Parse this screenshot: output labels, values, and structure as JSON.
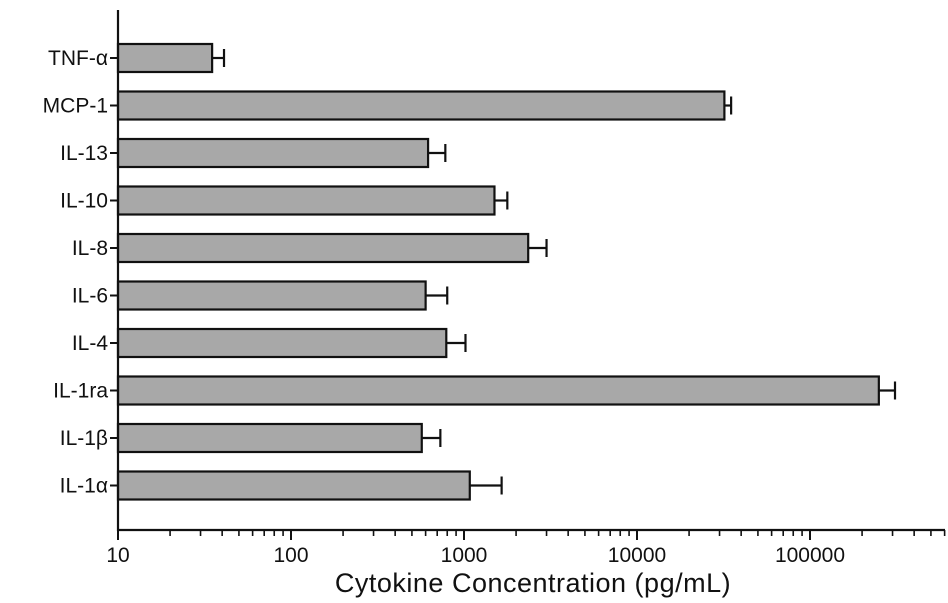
{
  "chart_data": {
    "type": "bar",
    "orientation": "horizontal",
    "title": "",
    "xlabel": "Cytokine Concentration (pg/mL)",
    "ylabel": "",
    "xscale": "log",
    "xlim": [
      10,
      500000
    ],
    "x_ticks": [
      10,
      100,
      1000,
      10000,
      100000
    ],
    "x_tick_labels": [
      "10",
      "100",
      "1000",
      "10000",
      "100000"
    ],
    "categories": [
      "TNF-α",
      "MCP-1",
      "IL-13",
      "IL-10",
      "IL-8",
      "IL-6",
      "IL-4",
      "IL-1ra",
      "IL-1β",
      "IL-1α"
    ],
    "values": [
      35,
      32000,
      620,
      1500,
      2350,
      600,
      790,
      250000,
      570,
      1080
    ],
    "error_upper": [
      41,
      35000,
      780,
      1780,
      3000,
      800,
      1020,
      310000,
      730,
      1650
    ],
    "grid": false,
    "legend": "none",
    "colors": {
      "bar_fill": "#a8a8a8",
      "bar_stroke": "#111111",
      "axis": "#111111"
    }
  }
}
